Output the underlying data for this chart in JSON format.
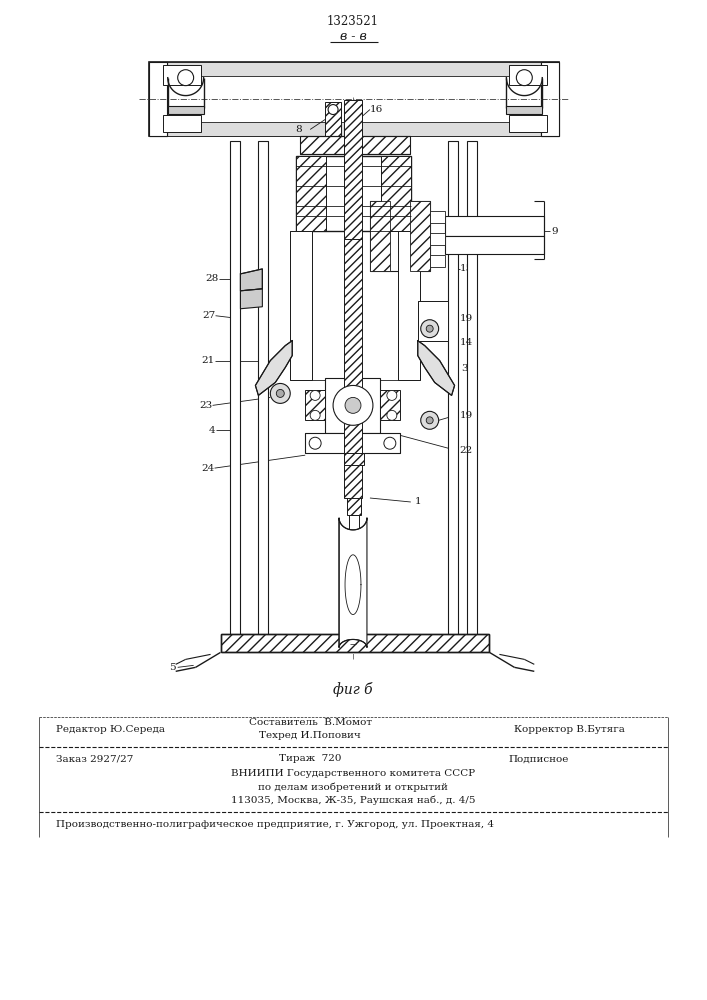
{
  "patent_number": "1323521",
  "view_label": "в - в",
  "fig_label": "фиг б",
  "bg_color": "#ffffff",
  "line_color": "#1a1a1a",
  "footer": {
    "line1_left": "Редактор Ю.Середа",
    "line1_center": "Составитель  В.Момот",
    "line2_center": "Техред И.Попович",
    "line2_right": "Корректор В.Бутяга",
    "line3_left": "Заказ 2927/27",
    "line3_center": "Тираж  720",
    "line3_right": "Подписное",
    "line4": "ВНИИПИ Государственного комитета СССР",
    "line5": "по делам изобретений и открытий",
    "line6": "113035, Москва, Ж-35, Раушская наб., д. 4/5",
    "line7": "Производственно-полиграфическое предприятие, г. Ужгород, ул. Проектная, 4"
  }
}
